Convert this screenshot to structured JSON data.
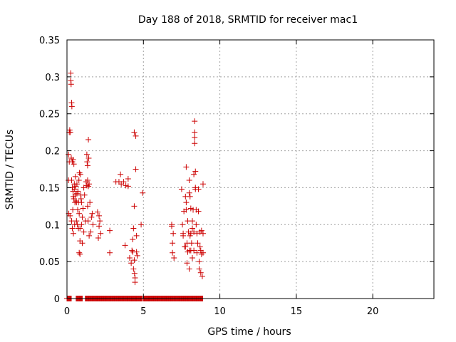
{
  "chart_data": {
    "type": "scatter",
    "title": "Day 188 of 2018, SRMTID for receiver mac1",
    "xlabel": "GPS time / hours",
    "ylabel": "SRMTID / TECUs",
    "xlim": [
      0,
      24
    ],
    "ylim": [
      0,
      0.35
    ],
    "x_ticks": [
      0,
      5,
      10,
      15,
      20
    ],
    "x_tick_labels": [
      "0",
      "5",
      "10",
      "15",
      "20"
    ],
    "y_ticks": [
      0,
      0.05,
      0.1,
      0.15,
      0.2,
      0.25,
      0.3,
      0.35
    ],
    "y_tick_labels": [
      "0",
      "0.05",
      "0.1",
      "0.15",
      "0.2",
      "0.25",
      "0.3",
      "0.35"
    ],
    "grid": true,
    "marker": "plus",
    "color": "#cc0000",
    "series": [
      {
        "name": "",
        "points": [
          [
            0.1,
            0.195
          ],
          [
            0.1,
            0.16
          ],
          [
            0.12,
            0.115
          ],
          [
            0.15,
            0.225
          ],
          [
            0.15,
            0.185
          ],
          [
            0.18,
            0.228
          ],
          [
            0.2,
            0.112
          ],
          [
            0.22,
            0.225
          ],
          [
            0.25,
            0.305
          ],
          [
            0.25,
            0.295
          ],
          [
            0.27,
            0.29
          ],
          [
            0.28,
            0.19
          ],
          [
            0.3,
            0.265
          ],
          [
            0.3,
            0.16
          ],
          [
            0.3,
            0.105
          ],
          [
            0.32,
            0.26
          ],
          [
            0.35,
            0.185
          ],
          [
            0.35,
            0.15
          ],
          [
            0.35,
            0.095
          ],
          [
            0.38,
            0.12
          ],
          [
            0.4,
            0.188
          ],
          [
            0.4,
            0.145
          ],
          [
            0.42,
            0.138
          ],
          [
            0.42,
            0.088
          ],
          [
            0.45,
            0.182
          ],
          [
            0.45,
            0.135
          ],
          [
            0.48,
            0.155
          ],
          [
            0.5,
            0.1
          ],
          [
            0.5,
            0.148
          ],
          [
            0.52,
            0.13
          ],
          [
            0.55,
            0.14
          ],
          [
            0.55,
            0.165
          ],
          [
            0.58,
            0.152
          ],
          [
            0.6,
            0.132
          ],
          [
            0.62,
            0.13
          ],
          [
            0.62,
            0.105
          ],
          [
            0.65,
            0.155
          ],
          [
            0.65,
            0.142
          ],
          [
            0.68,
            0.1
          ],
          [
            0.7,
            0.12
          ],
          [
            0.72,
            0.145
          ],
          [
            0.75,
            0.13
          ],
          [
            0.75,
            0.095
          ],
          [
            0.78,
            0.16
          ],
          [
            0.8,
            0.115
          ],
          [
            0.8,
            0.062
          ],
          [
            0.82,
            0.17
          ],
          [
            0.85,
            0.095
          ],
          [
            0.85,
            0.078
          ],
          [
            0.85,
            0.06
          ],
          [
            0.88,
            0.168
          ],
          [
            0.9,
            0.14
          ],
          [
            0.92,
            0.135
          ],
          [
            0.95,
            0.1
          ],
          [
            0.95,
            0.13
          ],
          [
            1.0,
            0.11
          ],
          [
            1.0,
            0.075
          ],
          [
            1.05,
            0.122
          ],
          [
            1.1,
            0.15
          ],
          [
            1.1,
            0.09
          ],
          [
            1.15,
            0.14
          ],
          [
            1.2,
            0.105
          ],
          [
            1.25,
            0.158
          ],
          [
            1.3,
            0.195
          ],
          [
            1.3,
            0.153
          ],
          [
            1.32,
            0.185
          ],
          [
            1.35,
            0.18
          ],
          [
            1.35,
            0.16
          ],
          [
            1.35,
            0.125
          ],
          [
            1.38,
            0.105
          ],
          [
            1.4,
            0.215
          ],
          [
            1.4,
            0.152
          ],
          [
            1.42,
            0.19
          ],
          [
            1.45,
            0.155
          ],
          [
            1.45,
            0.085
          ],
          [
            1.5,
            0.13
          ],
          [
            1.55,
            0.09
          ],
          [
            1.6,
            0.11
          ],
          [
            1.65,
            0.115
          ],
          [
            1.7,
            0.1
          ],
          [
            2.0,
            0.117
          ],
          [
            2.05,
            0.082
          ],
          [
            2.1,
            0.112
          ],
          [
            2.1,
            0.098
          ],
          [
            2.15,
            0.105
          ],
          [
            2.2,
            0.088
          ],
          [
            2.8,
            0.092
          ],
          [
            2.8,
            0.062
          ],
          [
            3.2,
            0.158
          ],
          [
            3.4,
            0.158
          ],
          [
            3.5,
            0.168
          ],
          [
            3.55,
            0.155
          ],
          [
            3.7,
            0.158
          ],
          [
            3.8,
            0.072
          ],
          [
            3.85,
            0.153
          ],
          [
            4.0,
            0.162
          ],
          [
            4.0,
            0.152
          ],
          [
            4.1,
            0.055
          ],
          [
            4.2,
            0.048
          ],
          [
            4.25,
            0.065
          ],
          [
            4.3,
            0.08
          ],
          [
            4.3,
            0.063
          ],
          [
            4.35,
            0.095
          ],
          [
            4.35,
            0.04
          ],
          [
            4.4,
            0.225
          ],
          [
            4.4,
            0.125
          ],
          [
            4.4,
            0.052
          ],
          [
            4.42,
            0.034
          ],
          [
            4.45,
            0.028
          ],
          [
            4.45,
            0.022
          ],
          [
            4.5,
            0.22
          ],
          [
            4.5,
            0.175
          ],
          [
            4.55,
            0.085
          ],
          [
            4.55,
            0.063
          ],
          [
            4.6,
            0.058
          ],
          [
            4.85,
            0.1
          ],
          [
            4.95,
            0.143
          ],
          [
            6.85,
            0.1
          ],
          [
            6.85,
            0.098
          ],
          [
            6.9,
            0.075
          ],
          [
            6.9,
            0.062
          ],
          [
            6.95,
            0.088
          ],
          [
            7.0,
            0.055
          ],
          [
            7.5,
            0.148
          ],
          [
            7.55,
            0.1
          ],
          [
            7.6,
            0.088
          ],
          [
            7.6,
            0.085
          ],
          [
            7.65,
            0.118
          ],
          [
            7.7,
            0.07
          ],
          [
            7.75,
            0.07
          ],
          [
            7.75,
            0.138
          ],
          [
            7.8,
            0.13
          ],
          [
            7.8,
            0.12
          ],
          [
            7.8,
            0.178
          ],
          [
            7.85,
            0.075
          ],
          [
            7.85,
            0.048
          ],
          [
            7.9,
            0.063
          ],
          [
            7.9,
            0.105
          ],
          [
            7.95,
            0.09
          ],
          [
            8.0,
            0.143
          ],
          [
            8.0,
            0.16
          ],
          [
            8.0,
            0.065
          ],
          [
            8.0,
            0.04
          ],
          [
            8.05,
            0.085
          ],
          [
            8.05,
            0.138
          ],
          [
            8.1,
            0.088
          ],
          [
            8.1,
            0.122
          ],
          [
            8.1,
            0.065
          ],
          [
            8.15,
            0.075
          ],
          [
            8.2,
            0.095
          ],
          [
            8.2,
            0.105
          ],
          [
            8.2,
            0.055
          ],
          [
            8.25,
            0.12
          ],
          [
            8.3,
            0.09
          ],
          [
            8.3,
            0.065
          ],
          [
            8.3,
            0.168
          ],
          [
            8.35,
            0.24
          ],
          [
            8.35,
            0.225
          ],
          [
            8.35,
            0.218
          ],
          [
            8.35,
            0.21
          ],
          [
            8.4,
            0.172
          ],
          [
            8.4,
            0.15
          ],
          [
            8.4,
            0.148
          ],
          [
            8.45,
            0.12
          ],
          [
            8.45,
            0.1
          ],
          [
            8.5,
            0.088
          ],
          [
            8.5,
            0.062
          ],
          [
            8.55,
            0.075
          ],
          [
            8.6,
            0.118
          ],
          [
            8.6,
            0.148
          ],
          [
            8.65,
            0.05
          ],
          [
            8.65,
            0.04
          ],
          [
            8.7,
            0.09
          ],
          [
            8.7,
            0.07
          ],
          [
            8.75,
            0.065
          ],
          [
            8.75,
            0.035
          ],
          [
            8.8,
            0.092
          ],
          [
            8.8,
            0.06
          ],
          [
            8.85,
            0.03
          ],
          [
            8.9,
            0.155
          ],
          [
            8.9,
            0.088
          ],
          [
            8.9,
            0.062
          ]
        ],
        "zero_runs": [
          [
            0.0,
            0.3
          ],
          [
            0.6,
            1.0
          ],
          [
            1.2,
            4.95
          ],
          [
            5.0,
            8.9
          ]
        ]
      }
    ]
  }
}
